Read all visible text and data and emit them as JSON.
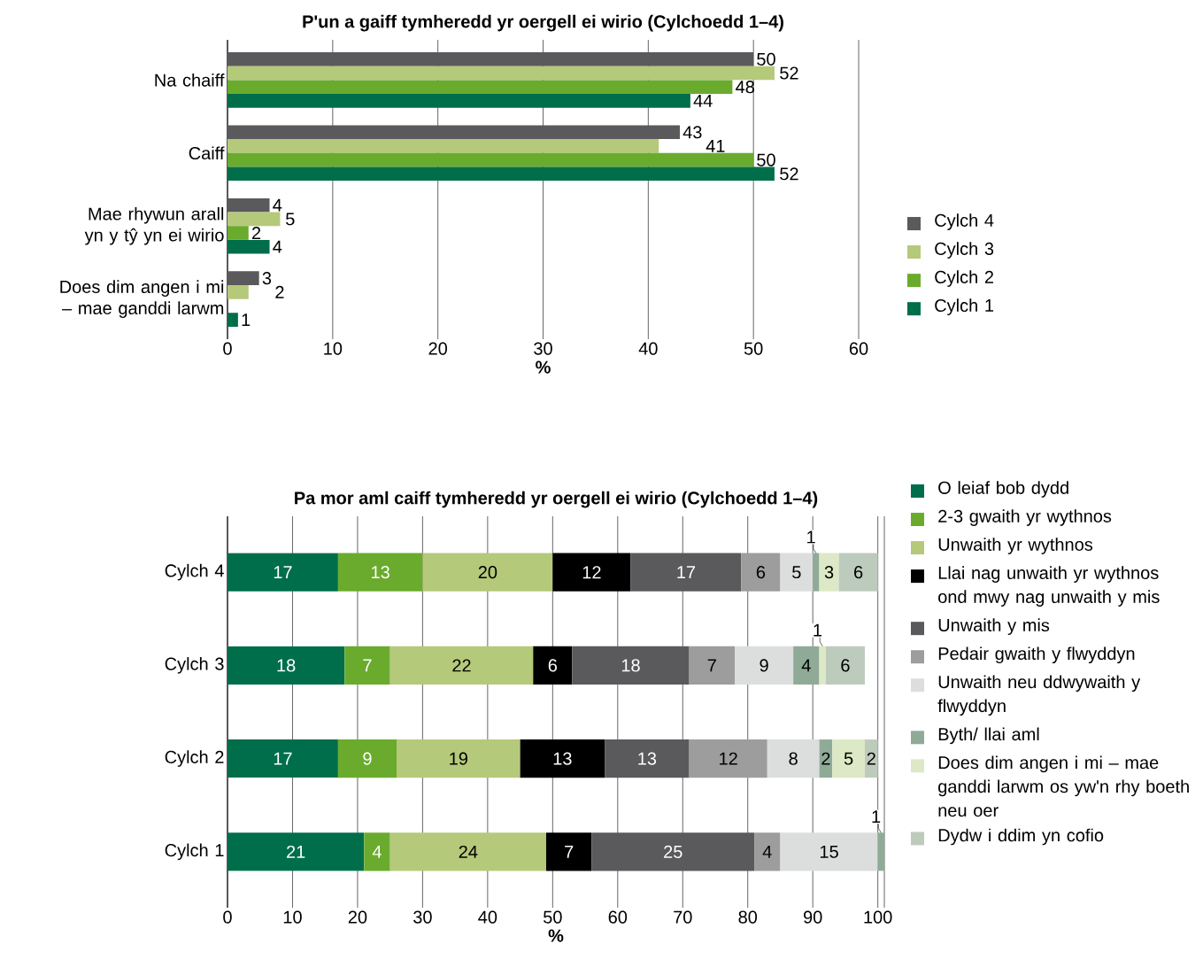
{
  "chart_data": [
    {
      "type": "bar",
      "orientation": "horizontal",
      "title": "P'un a gaiff tymheredd yr oergell ei wirio (Cylchoedd 1–4)",
      "xlabel": "%",
      "categories": [
        "Na chaiff",
        "Caiff",
        "Mae rhywun arall yn y tŷ yn ei wirio",
        "Does dim angen i mi – mae ganddi larwm"
      ],
      "series": [
        {
          "name": "Cylch 4",
          "color": "#5a5a5c",
          "values": [
            50,
            43,
            4,
            3
          ]
        },
        {
          "name": "Cylch 3",
          "color": "#b5c97a",
          "values": [
            52,
            41,
            5,
            2
          ]
        },
        {
          "name": "Cylch 2",
          "color": "#6aab2e",
          "values": [
            48,
            50,
            2,
            null
          ]
        },
        {
          "name": "Cylch 1",
          "color": "#006e4b",
          "values": [
            44,
            52,
            4,
            1
          ]
        }
      ],
      "xlim": [
        0,
        60
      ],
      "xticks": [
        0,
        10,
        20,
        30,
        40,
        50,
        60
      ],
      "grid": "x",
      "legend": "right",
      "data_labels": true
    },
    {
      "type": "bar",
      "orientation": "horizontal",
      "stacked": true,
      "title": "Pa mor aml caiff tymheredd yr oergell ei wirio (Cylchoedd 1–4)",
      "xlabel": "%",
      "categories": [
        "Cylch 4",
        "Cylch 3",
        "Cylch 2",
        "Cylch 1"
      ],
      "series": [
        {
          "name": "O leiaf bob dydd",
          "color": "#006e4b",
          "values": [
            17,
            18,
            17,
            21
          ]
        },
        {
          "name": "2-3 gwaith yr wythnos",
          "color": "#6aab2e",
          "values": [
            13,
            7,
            9,
            4
          ]
        },
        {
          "name": "Unwaith yr wythnos",
          "color": "#b5c97a",
          "values": [
            20,
            22,
            19,
            24
          ]
        },
        {
          "name": "Llai nag unwaith yr wythnos ond mwy nag unwaith y mis",
          "color": "#000000",
          "values": [
            12,
            6,
            13,
            7
          ]
        },
        {
          "name": "Unwaith y mis",
          "color": "#5a5a5c",
          "values": [
            17,
            18,
            13,
            25
          ]
        },
        {
          "name": "Pedair gwaith y flwyddyn",
          "color": "#9d9d9d",
          "values": [
            6,
            7,
            12,
            4
          ]
        },
        {
          "name": "Unwaith neu ddwywaith y flwyddyn",
          "color": "#dcdddd",
          "values": [
            5,
            9,
            8,
            15
          ]
        },
        {
          "name": "Byth/ llai aml",
          "color": "#8fab98",
          "values": [
            1,
            4,
            2,
            1
          ]
        },
        {
          "name": "Does dim angen i mi – mae ganddi larwm os yw'n rhy boeth neu oer",
          "color": "#dde8c6",
          "values": [
            3,
            1,
            5,
            null
          ]
        },
        {
          "name": "Dydw i ddim yn cofio",
          "color": "#bdcbbd",
          "values": [
            6,
            6,
            2,
            null
          ]
        }
      ],
      "xlim": [
        0,
        101
      ],
      "xticks": [
        0,
        10,
        20,
        30,
        40,
        50,
        60,
        70,
        80,
        90,
        100
      ],
      "grid": "x",
      "legend": "top right",
      "data_labels": true
    }
  ]
}
